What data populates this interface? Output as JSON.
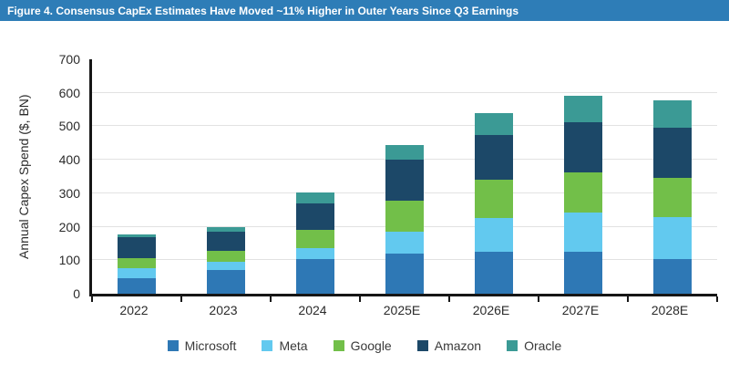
{
  "banner": {
    "title": "Figure 4. Consensus CapEx Estimates Have Moved ~11% Higher in Outer Years Since Q3 Earnings",
    "bg_color": "#2e7db7",
    "text_color": "#ffffff"
  },
  "chart_data": {
    "type": "bar",
    "stacked": true,
    "title": "",
    "xlabel": "",
    "ylabel": "Annual Capex Spend ($, BN)",
    "ylim": [
      0,
      700
    ],
    "yticks": [
      0,
      100,
      200,
      300,
      400,
      500,
      600,
      700
    ],
    "grid": "horizontal",
    "legend_position": "bottom",
    "categories": [
      "2022",
      "2023",
      "2024",
      "2025E",
      "2026E",
      "2027E",
      "2028E"
    ],
    "series": [
      {
        "name": "Microsoft",
        "color": "#2e78b5",
        "values": [
          47,
          71,
          103,
          121,
          125,
          124,
          104
        ]
      },
      {
        "name": "Meta",
        "color": "#62c9ef",
        "values": [
          28,
          25,
          34,
          65,
          102,
          118,
          126
        ]
      },
      {
        "name": "Google",
        "color": "#72bf49",
        "values": [
          32,
          33,
          55,
          91,
          114,
          121,
          115
        ]
      },
      {
        "name": "Amazon",
        "color": "#1c4868",
        "values": [
          61,
          55,
          78,
          123,
          133,
          150,
          150
        ]
      },
      {
        "name": "Oracle",
        "color": "#3b9a95",
        "values": [
          10,
          16,
          33,
          45,
          66,
          77,
          82
        ]
      }
    ],
    "stack_totals": [
      178,
      200,
      303,
      445,
      540,
      590,
      577
    ],
    "colors": {
      "gridline": "#e2e2e2",
      "axis": "#161616",
      "tick_text": "#2b2b2b"
    }
  }
}
